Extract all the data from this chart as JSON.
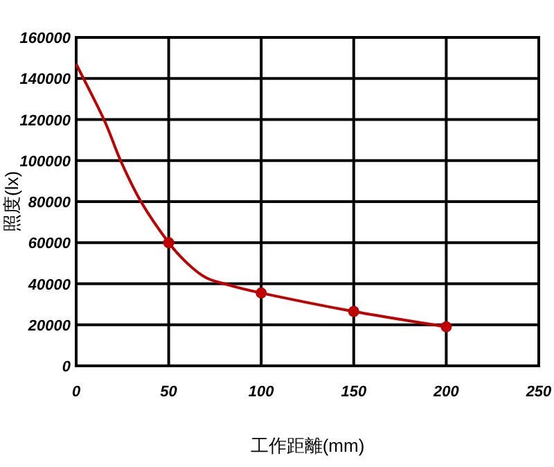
{
  "chart_data": {
    "type": "line",
    "xlabel": "工作距離(mm)",
    "ylabel": "照度(lx)",
    "xlim": [
      0,
      250
    ],
    "xticks": [
      0,
      50,
      100,
      150,
      200,
      250
    ],
    "ylim": [
      0,
      160000
    ],
    "yticks": [
      0,
      20000,
      40000,
      60000,
      80000,
      100000,
      120000,
      140000,
      160000
    ],
    "grid": true,
    "line_style": "solid",
    "series": [
      {
        "type": "line",
        "color": "#c00000",
        "marker": "none",
        "x": [
          0,
          15,
          24,
          35,
          50,
          60,
          70,
          80,
          100,
          150,
          200
        ],
        "values": [
          147000,
          120000,
          100000,
          80000,
          60000,
          50000,
          43000,
          40000,
          35500,
          26500,
          19000
        ]
      },
      {
        "type": "scatter",
        "color": "#c00000",
        "marker": "circle",
        "x": [
          50,
          100,
          150,
          200
        ],
        "values": [
          60000,
          35500,
          26500,
          19000
        ]
      }
    ]
  }
}
